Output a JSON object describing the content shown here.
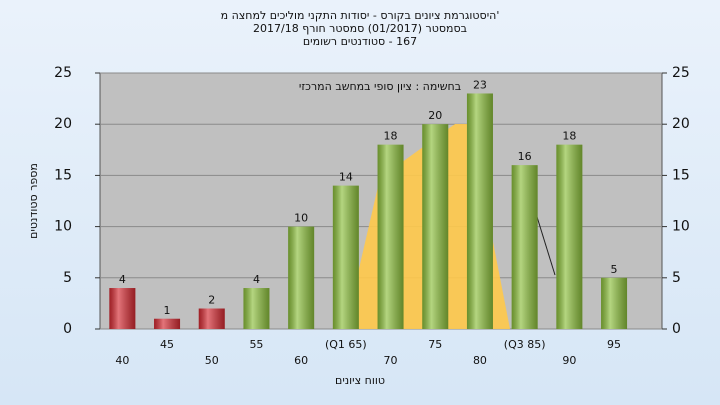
{
  "chart_data": {
    "type": "bar",
    "title": [
      "'היסטוגרמת ציונים בקורס - יסודות התקני מוליכים למחצה מ",
      "בסמסטר (01/2017) סמסטר חורף 2017/18",
      "167 - סטודנטים רשומים"
    ],
    "subtitle": "בחשימה : ציון סופי במחשב המרכזי",
    "xlabel": "טווח ציונים",
    "ylabel": "מספר סטודנטים",
    "categories": [
      "40",
      "45",
      "50",
      "55",
      "60",
      "(Q1 65)",
      "70",
      "75",
      "80",
      "(Q3 85)",
      "90",
      "95"
    ],
    "values": [
      4,
      1,
      2,
      4,
      10,
      14,
      18,
      20,
      23,
      16,
      18,
      5
    ],
    "colors": [
      "#d42a32",
      "#d42a32",
      "#d42a32",
      "#8cbf3c",
      "#8cbf3c",
      "#8cbf3c",
      "#8cbf3c",
      "#8cbf3c",
      "#8cbf3c",
      "#8cbf3c",
      "#8cbf3c",
      "#8cbf3c"
    ],
    "ylim": [
      0,
      25
    ],
    "yticks": [
      0,
      5,
      10,
      15,
      20,
      25
    ],
    "y2lim": [
      0,
      25
    ],
    "y2ticks": [
      0,
      5,
      10,
      15,
      20,
      25
    ],
    "grid": true
  }
}
